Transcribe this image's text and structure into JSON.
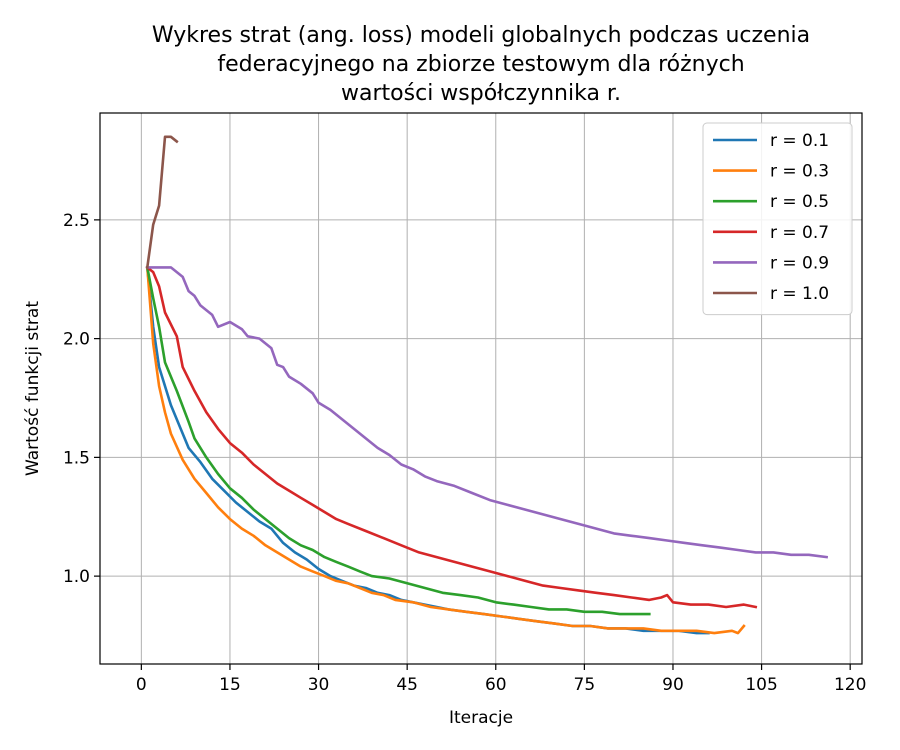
{
  "chart_data": {
    "type": "line",
    "title": "Wykres strat (ang. loss) modeli globalnych podczas uczenia federacyjnego na zbiorze testowym dla różnych wartości współczynnika r.",
    "title_lines": [
      "Wykres strat (ang. loss) modeli globalnych podczas uczenia",
      "federacyjnego na zbiorze testowym dla różnych",
      "wartości współczynnika r."
    ],
    "xlabel": "Iteracje",
    "ylabel": "Wartość funkcji strat",
    "xlim": [
      -7,
      122
    ],
    "ylim": [
      0.63,
      2.95
    ],
    "xticks": [
      0,
      15,
      30,
      45,
      60,
      75,
      90,
      105,
      120
    ],
    "yticks": [
      1.0,
      1.5,
      2.0,
      2.5
    ],
    "ytick_labels": [
      "1.0",
      "1.5",
      "2.0",
      "2.5"
    ],
    "grid": true,
    "legend_position": "top-right",
    "series": [
      {
        "name": "r = 0.1",
        "color": "#1f77b4",
        "points": [
          [
            1,
            2.3
          ],
          [
            2,
            2.05
          ],
          [
            3,
            1.88
          ],
          [
            5,
            1.72
          ],
          [
            7,
            1.6
          ],
          [
            8,
            1.54
          ],
          [
            10,
            1.48
          ],
          [
            12,
            1.41
          ],
          [
            14,
            1.36
          ],
          [
            16,
            1.31
          ],
          [
            18,
            1.27
          ],
          [
            20,
            1.23
          ],
          [
            22,
            1.2
          ],
          [
            24,
            1.14
          ],
          [
            26,
            1.1
          ],
          [
            28,
            1.07
          ],
          [
            30,
            1.03
          ],
          [
            32,
            1.0
          ],
          [
            34,
            0.98
          ],
          [
            36,
            0.96
          ],
          [
            38,
            0.95
          ],
          [
            40,
            0.93
          ],
          [
            42,
            0.92
          ],
          [
            44,
            0.9
          ],
          [
            46,
            0.89
          ],
          [
            48,
            0.88
          ],
          [
            50,
            0.87
          ],
          [
            52,
            0.86
          ],
          [
            55,
            0.85
          ],
          [
            58,
            0.84
          ],
          [
            61,
            0.83
          ],
          [
            64,
            0.82
          ],
          [
            67,
            0.81
          ],
          [
            70,
            0.8
          ],
          [
            73,
            0.79
          ],
          [
            76,
            0.79
          ],
          [
            79,
            0.78
          ],
          [
            82,
            0.78
          ],
          [
            85,
            0.77
          ],
          [
            88,
            0.77
          ],
          [
            91,
            0.77
          ],
          [
            94,
            0.76
          ],
          [
            96,
            0.76
          ]
        ]
      },
      {
        "name": "r = 0.3",
        "color": "#ff7f0e",
        "points": [
          [
            1,
            2.3
          ],
          [
            2,
            1.98
          ],
          [
            3,
            1.8
          ],
          [
            4,
            1.69
          ],
          [
            5,
            1.6
          ],
          [
            7,
            1.49
          ],
          [
            9,
            1.41
          ],
          [
            11,
            1.35
          ],
          [
            13,
            1.29
          ],
          [
            15,
            1.24
          ],
          [
            17,
            1.2
          ],
          [
            19,
            1.17
          ],
          [
            21,
            1.13
          ],
          [
            23,
            1.1
          ],
          [
            25,
            1.07
          ],
          [
            27,
            1.04
          ],
          [
            29,
            1.02
          ],
          [
            31,
            1.0
          ],
          [
            33,
            0.98
          ],
          [
            35,
            0.97
          ],
          [
            37,
            0.95
          ],
          [
            39,
            0.93
          ],
          [
            41,
            0.92
          ],
          [
            43,
            0.9
          ],
          [
            46,
            0.89
          ],
          [
            49,
            0.87
          ],
          [
            52,
            0.86
          ],
          [
            55,
            0.85
          ],
          [
            58,
            0.84
          ],
          [
            61,
            0.83
          ],
          [
            64,
            0.82
          ],
          [
            67,
            0.81
          ],
          [
            70,
            0.8
          ],
          [
            73,
            0.79
          ],
          [
            76,
            0.79
          ],
          [
            79,
            0.78
          ],
          [
            82,
            0.78
          ],
          [
            85,
            0.78
          ],
          [
            88,
            0.77
          ],
          [
            91,
            0.77
          ],
          [
            94,
            0.77
          ],
          [
            97,
            0.76
          ],
          [
            100,
            0.77
          ],
          [
            101,
            0.76
          ],
          [
            102,
            0.79
          ]
        ]
      },
      {
        "name": "r = 0.5",
        "color": "#2ca02c",
        "points": [
          [
            1,
            2.3
          ],
          [
            2,
            2.17
          ],
          [
            3,
            2.05
          ],
          [
            4,
            1.9
          ],
          [
            6,
            1.78
          ],
          [
            8,
            1.65
          ],
          [
            9,
            1.58
          ],
          [
            11,
            1.5
          ],
          [
            13,
            1.43
          ],
          [
            15,
            1.37
          ],
          [
            17,
            1.33
          ],
          [
            19,
            1.28
          ],
          [
            21,
            1.24
          ],
          [
            23,
            1.2
          ],
          [
            25,
            1.16
          ],
          [
            27,
            1.13
          ],
          [
            29,
            1.11
          ],
          [
            31,
            1.08
          ],
          [
            33,
            1.06
          ],
          [
            35,
            1.04
          ],
          [
            37,
            1.02
          ],
          [
            39,
            1.0
          ],
          [
            42,
            0.99
          ],
          [
            45,
            0.97
          ],
          [
            48,
            0.95
          ],
          [
            51,
            0.93
          ],
          [
            54,
            0.92
          ],
          [
            57,
            0.91
          ],
          [
            60,
            0.89
          ],
          [
            63,
            0.88
          ],
          [
            66,
            0.87
          ],
          [
            69,
            0.86
          ],
          [
            72,
            0.86
          ],
          [
            75,
            0.85
          ],
          [
            78,
            0.85
          ],
          [
            81,
            0.84
          ],
          [
            84,
            0.84
          ],
          [
            86,
            0.84
          ]
        ]
      },
      {
        "name": "r = 0.7",
        "color": "#d62728",
        "points": [
          [
            1,
            2.3
          ],
          [
            2,
            2.28
          ],
          [
            3,
            2.22
          ],
          [
            4,
            2.11
          ],
          [
            6,
            2.01
          ],
          [
            7,
            1.88
          ],
          [
            9,
            1.78
          ],
          [
            11,
            1.69
          ],
          [
            13,
            1.62
          ],
          [
            15,
            1.56
          ],
          [
            17,
            1.52
          ],
          [
            19,
            1.47
          ],
          [
            21,
            1.43
          ],
          [
            23,
            1.39
          ],
          [
            25,
            1.36
          ],
          [
            27,
            1.33
          ],
          [
            29,
            1.3
          ],
          [
            31,
            1.27
          ],
          [
            33,
            1.24
          ],
          [
            35,
            1.22
          ],
          [
            38,
            1.19
          ],
          [
            41,
            1.16
          ],
          [
            44,
            1.13
          ],
          [
            47,
            1.1
          ],
          [
            50,
            1.08
          ],
          [
            53,
            1.06
          ],
          [
            56,
            1.04
          ],
          [
            59,
            1.02
          ],
          [
            62,
            1.0
          ],
          [
            65,
            0.98
          ],
          [
            68,
            0.96
          ],
          [
            71,
            0.95
          ],
          [
            74,
            0.94
          ],
          [
            77,
            0.93
          ],
          [
            80,
            0.92
          ],
          [
            83,
            0.91
          ],
          [
            86,
            0.9
          ],
          [
            88,
            0.91
          ],
          [
            89,
            0.92
          ],
          [
            90,
            0.89
          ],
          [
            93,
            0.88
          ],
          [
            96,
            0.88
          ],
          [
            99,
            0.87
          ],
          [
            102,
            0.88
          ],
          [
            104,
            0.87
          ]
        ]
      },
      {
        "name": "r = 0.9",
        "color": "#9467bd",
        "points": [
          [
            1,
            2.3
          ],
          [
            3,
            2.3
          ],
          [
            5,
            2.3
          ],
          [
            6,
            2.28
          ],
          [
            7,
            2.26
          ],
          [
            8,
            2.2
          ],
          [
            9,
            2.18
          ],
          [
            10,
            2.14
          ],
          [
            12,
            2.1
          ],
          [
            13,
            2.05
          ],
          [
            15,
            2.07
          ],
          [
            17,
            2.04
          ],
          [
            18,
            2.01
          ],
          [
            20,
            2.0
          ],
          [
            22,
            1.96
          ],
          [
            23,
            1.89
          ],
          [
            24,
            1.88
          ],
          [
            25,
            1.84
          ],
          [
            27,
            1.81
          ],
          [
            29,
            1.77
          ],
          [
            30,
            1.73
          ],
          [
            32,
            1.7
          ],
          [
            34,
            1.66
          ],
          [
            36,
            1.62
          ],
          [
            38,
            1.58
          ],
          [
            40,
            1.54
          ],
          [
            42,
            1.51
          ],
          [
            44,
            1.47
          ],
          [
            46,
            1.45
          ],
          [
            48,
            1.42
          ],
          [
            50,
            1.4
          ],
          [
            53,
            1.38
          ],
          [
            56,
            1.35
          ],
          [
            59,
            1.32
          ],
          [
            62,
            1.3
          ],
          [
            65,
            1.28
          ],
          [
            68,
            1.26
          ],
          [
            71,
            1.24
          ],
          [
            74,
            1.22
          ],
          [
            77,
            1.2
          ],
          [
            80,
            1.18
          ],
          [
            83,
            1.17
          ],
          [
            86,
            1.16
          ],
          [
            89,
            1.15
          ],
          [
            92,
            1.14
          ],
          [
            95,
            1.13
          ],
          [
            98,
            1.12
          ],
          [
            101,
            1.11
          ],
          [
            104,
            1.1
          ],
          [
            107,
            1.1
          ],
          [
            110,
            1.09
          ],
          [
            113,
            1.09
          ],
          [
            116,
            1.08
          ]
        ]
      },
      {
        "name": "r = 1.0",
        "color": "#8c564b",
        "points": [
          [
            1,
            2.3
          ],
          [
            2,
            2.48
          ],
          [
            3,
            2.56
          ],
          [
            4,
            2.85
          ],
          [
            5,
            2.85
          ],
          [
            6,
            2.83
          ]
        ]
      }
    ]
  }
}
